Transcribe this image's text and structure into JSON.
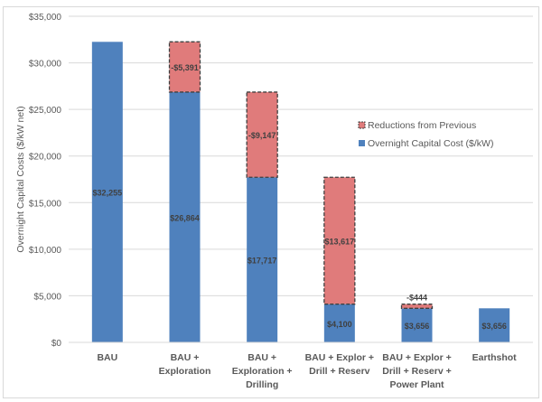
{
  "chart_data": {
    "type": "bar",
    "stacked": true,
    "categories": [
      [
        "BAU"
      ],
      [
        "BAU +",
        "Exploration"
      ],
      [
        "BAU +",
        "Exploration +",
        "Drilling"
      ],
      [
        "BAU + Explor +",
        "Drill + Reserv"
      ],
      [
        "BAU + Explor +",
        "Drill + Reserv +",
        "Power Plant"
      ],
      [
        "Earthshot"
      ]
    ],
    "series": [
      {
        "name": "Overnight Capital Cost ($/kW)",
        "color": "#4f81bd",
        "values": [
          32255,
          26864,
          17717,
          4100,
          3656,
          3656
        ],
        "labels": [
          "$32,255",
          "$26,864",
          "$17,717",
          "$4,100",
          "$3,656",
          "$3,656"
        ]
      },
      {
        "name": "Reductions from Previous",
        "color": "#e07b7b",
        "values": [
          0,
          5391,
          9147,
          13617,
          444,
          0
        ],
        "labels": [
          "",
          "-$5,391",
          "-$9,147",
          "$13,617",
          "-$444",
          ""
        ]
      }
    ],
    "ylabel": "Overnight Capital Costs  ($/kW net)",
    "ylim": [
      0,
      35000
    ],
    "yticks": [
      0,
      5000,
      10000,
      15000,
      20000,
      25000,
      30000,
      35000
    ],
    "ytick_labels": [
      "$0",
      "$5,000",
      "$10,000",
      "$15,000",
      "$20,000",
      "$25,000",
      "$30,000",
      "$35,000"
    ],
    "grid": true,
    "legend": "upper-right"
  }
}
